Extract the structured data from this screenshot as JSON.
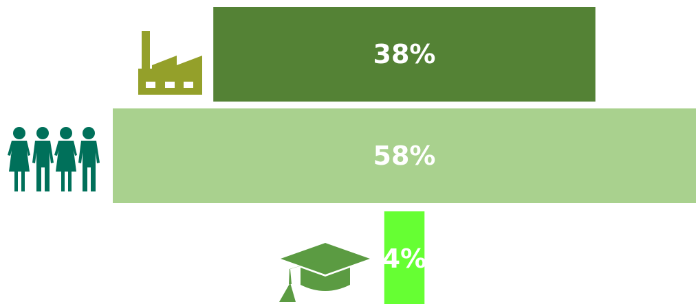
{
  "chart_data": {
    "type": "bar",
    "orientation": "horizontal",
    "layout": "centered",
    "categories": [
      "industry-icon",
      "people-icon",
      "graduation-cap-icon"
    ],
    "values": [
      38,
      58,
      4
    ],
    "data_labels": [
      "38%",
      "58%",
      "4%"
    ],
    "colors": [
      "#548235",
      "#a9d18e",
      "#66ff33"
    ],
    "icon_colors": [
      "#94a02a",
      "#00705a",
      "#5b9b42"
    ],
    "unit": "%",
    "title": "",
    "xlabel": "",
    "ylabel": "",
    "grid": false,
    "legend": "none"
  }
}
